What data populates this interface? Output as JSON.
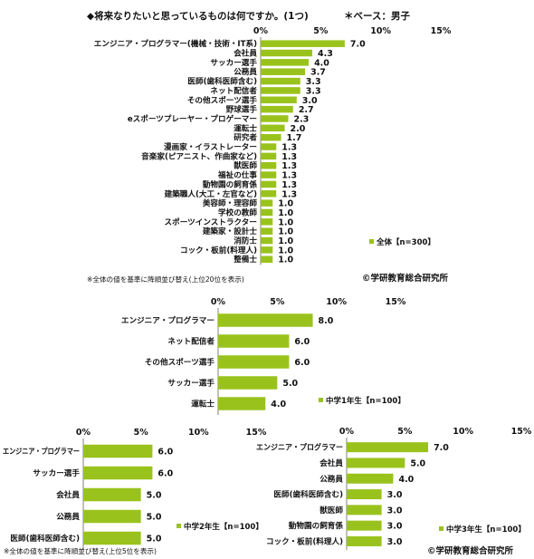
{
  "colors": {
    "bar": "#99c31c",
    "axis": "#808080",
    "grid": "#a0a0a0"
  },
  "header": {
    "question": "◆将来なりたいと思っているものは何ですか。(1つ)",
    "base": "＊ベース：男子"
  },
  "notes": {
    "note_top20": "※全体の値を基準に降順並び替え(上位20位を表示)",
    "note_top5": "※全体の値を基準に降順並び替え(上位5位を表示)",
    "copyright_1": "©学研教育総合研究所",
    "copyright_2": "©学研教育総合研究所"
  },
  "chart_data": [
    {
      "type": "bar",
      "orientation": "horizontal",
      "legend": "全体【n=300】",
      "legend_position": "bottom-right",
      "xlim": [
        0,
        15
      ],
      "ticks": [
        "0%",
        "5%",
        "10%",
        "15%"
      ],
      "categories": [
        "エンジニア・プログラマー(機械・技術・IT系)",
        "会社員",
        "サッカー選手",
        "公務員",
        "医師(歯科医師含む)",
        "ネット配信者",
        "その他スポーツ選手",
        "野球選手",
        "eスポーツプレーヤー・プロゲーマー",
        "運転士",
        "研究者",
        "漫画家・イラストレーター",
        "音楽家(ピアニスト、作曲家など)",
        "獣医師",
        "福祉の仕事",
        "動物園の飼育係",
        "建築職人(大工・左官など)",
        "美容師・理容師",
        "学校の教師",
        "スポーツインストラクター",
        "建築家・設計士",
        "消防士",
        "コック・板前(料理人)",
        "整備士"
      ],
      "values": [
        7.0,
        4.3,
        4.0,
        3.7,
        3.3,
        3.3,
        3.0,
        2.7,
        2.3,
        2.0,
        1.7,
        1.3,
        1.3,
        1.3,
        1.3,
        1.3,
        1.3,
        1.0,
        1.0,
        1.0,
        1.0,
        1.0,
        1.0,
        1.0
      ],
      "labels": [
        "7.0",
        "4.3",
        "4.0",
        "3.7",
        "3.3",
        "3.3",
        "3.0",
        "2.7",
        "2.3",
        "2.0",
        "1.7",
        "1.3",
        "1.3",
        "1.3",
        "1.3",
        "1.3",
        "1.3",
        "1.0",
        "1.0",
        "1.0",
        "1.0",
        "1.0",
        "1.0",
        "1.0"
      ]
    },
    {
      "type": "bar",
      "orientation": "horizontal",
      "legend": "中学1年生【n=100】",
      "legend_position": "bottom-right",
      "xlim": [
        0,
        15
      ],
      "ticks": [
        "0%",
        "5%",
        "10%",
        "15%"
      ],
      "categories": [
        "エンジニア・プログラマー",
        "ネット配信者",
        "その他スポーツ選手",
        "サッカー選手",
        "運転士"
      ],
      "values": [
        8.0,
        6.0,
        6.0,
        5.0,
        4.0
      ],
      "labels": [
        "8.0",
        "6.0",
        "6.0",
        "5.0",
        "4.0"
      ]
    },
    {
      "type": "bar",
      "orientation": "horizontal",
      "legend": "中学2年生【n=100】",
      "legend_position": "bottom-right",
      "xlim": [
        0,
        15
      ],
      "ticks": [
        "0%",
        "5%",
        "10%",
        "15%"
      ],
      "categories": [
        "エンジニア・プログラマー",
        "サッカー選手",
        "会社員",
        "公務員",
        "医師(歯科医師含む)"
      ],
      "values": [
        6.0,
        6.0,
        5.0,
        5.0,
        5.0
      ],
      "labels": [
        "6.0",
        "6.0",
        "5.0",
        "5.0",
        "5.0"
      ]
    },
    {
      "type": "bar",
      "orientation": "horizontal",
      "legend": "中学3年生【n=100】",
      "legend_position": "bottom-right",
      "xlim": [
        0,
        15
      ],
      "ticks": [
        "0%",
        "5%",
        "10%",
        "15%"
      ],
      "categories": [
        "エンジニア・プログラマー",
        "会社員",
        "公務員",
        "医師(歯科医師含む)",
        "獣医師",
        "動物園の飼育係",
        "コック・板前(料理人)"
      ],
      "values": [
        7.0,
        5.0,
        4.0,
        3.0,
        3.0,
        3.0,
        3.0
      ],
      "labels": [
        "7.0",
        "5.0",
        "4.0",
        "3.0",
        "3.0",
        "3.0",
        "3.0"
      ]
    }
  ]
}
